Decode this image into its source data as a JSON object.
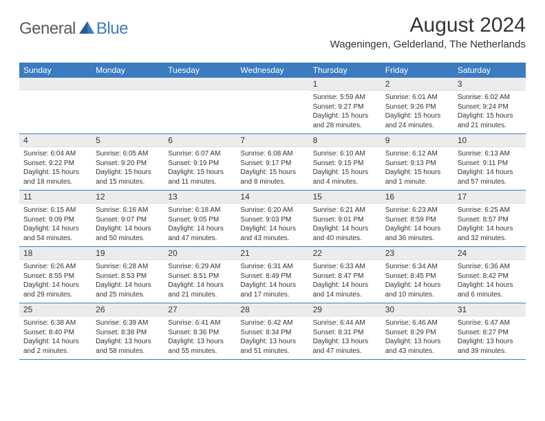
{
  "logo": {
    "text1": "General",
    "text2": "Blue",
    "color_gray": "#5a5a5a",
    "color_blue": "#3b7bbf"
  },
  "title": "August 2024",
  "location": "Wageningen, Gelderland, The Netherlands",
  "colors": {
    "header_bg": "#3b7bbf",
    "header_text": "#ffffff",
    "daynum_bg": "#ececec",
    "border": "#3b7bbf",
    "text": "#333333"
  },
  "day_names": [
    "Sunday",
    "Monday",
    "Tuesday",
    "Wednesday",
    "Thursday",
    "Friday",
    "Saturday"
  ],
  "weeks": [
    [
      {
        "n": "",
        "sunrise": "",
        "sunset": "",
        "daylight1": "",
        "daylight2": ""
      },
      {
        "n": "",
        "sunrise": "",
        "sunset": "",
        "daylight1": "",
        "daylight2": ""
      },
      {
        "n": "",
        "sunrise": "",
        "sunset": "",
        "daylight1": "",
        "daylight2": ""
      },
      {
        "n": "",
        "sunrise": "",
        "sunset": "",
        "daylight1": "",
        "daylight2": ""
      },
      {
        "n": "1",
        "sunrise": "Sunrise: 5:59 AM",
        "sunset": "Sunset: 9:27 PM",
        "daylight1": "Daylight: 15 hours",
        "daylight2": "and 28 minutes."
      },
      {
        "n": "2",
        "sunrise": "Sunrise: 6:01 AM",
        "sunset": "Sunset: 9:26 PM",
        "daylight1": "Daylight: 15 hours",
        "daylight2": "and 24 minutes."
      },
      {
        "n": "3",
        "sunrise": "Sunrise: 6:02 AM",
        "sunset": "Sunset: 9:24 PM",
        "daylight1": "Daylight: 15 hours",
        "daylight2": "and 21 minutes."
      }
    ],
    [
      {
        "n": "4",
        "sunrise": "Sunrise: 6:04 AM",
        "sunset": "Sunset: 9:22 PM",
        "daylight1": "Daylight: 15 hours",
        "daylight2": "and 18 minutes."
      },
      {
        "n": "5",
        "sunrise": "Sunrise: 6:05 AM",
        "sunset": "Sunset: 9:20 PM",
        "daylight1": "Daylight: 15 hours",
        "daylight2": "and 15 minutes."
      },
      {
        "n": "6",
        "sunrise": "Sunrise: 6:07 AM",
        "sunset": "Sunset: 9:19 PM",
        "daylight1": "Daylight: 15 hours",
        "daylight2": "and 11 minutes."
      },
      {
        "n": "7",
        "sunrise": "Sunrise: 6:08 AM",
        "sunset": "Sunset: 9:17 PM",
        "daylight1": "Daylight: 15 hours",
        "daylight2": "and 8 minutes."
      },
      {
        "n": "8",
        "sunrise": "Sunrise: 6:10 AM",
        "sunset": "Sunset: 9:15 PM",
        "daylight1": "Daylight: 15 hours",
        "daylight2": "and 4 minutes."
      },
      {
        "n": "9",
        "sunrise": "Sunrise: 6:12 AM",
        "sunset": "Sunset: 9:13 PM",
        "daylight1": "Daylight: 15 hours",
        "daylight2": "and 1 minute."
      },
      {
        "n": "10",
        "sunrise": "Sunrise: 6:13 AM",
        "sunset": "Sunset: 9:11 PM",
        "daylight1": "Daylight: 14 hours",
        "daylight2": "and 57 minutes."
      }
    ],
    [
      {
        "n": "11",
        "sunrise": "Sunrise: 6:15 AM",
        "sunset": "Sunset: 9:09 PM",
        "daylight1": "Daylight: 14 hours",
        "daylight2": "and 54 minutes."
      },
      {
        "n": "12",
        "sunrise": "Sunrise: 6:16 AM",
        "sunset": "Sunset: 9:07 PM",
        "daylight1": "Daylight: 14 hours",
        "daylight2": "and 50 minutes."
      },
      {
        "n": "13",
        "sunrise": "Sunrise: 6:18 AM",
        "sunset": "Sunset: 9:05 PM",
        "daylight1": "Daylight: 14 hours",
        "daylight2": "and 47 minutes."
      },
      {
        "n": "14",
        "sunrise": "Sunrise: 6:20 AM",
        "sunset": "Sunset: 9:03 PM",
        "daylight1": "Daylight: 14 hours",
        "daylight2": "and 43 minutes."
      },
      {
        "n": "15",
        "sunrise": "Sunrise: 6:21 AM",
        "sunset": "Sunset: 9:01 PM",
        "daylight1": "Daylight: 14 hours",
        "daylight2": "and 40 minutes."
      },
      {
        "n": "16",
        "sunrise": "Sunrise: 6:23 AM",
        "sunset": "Sunset: 8:59 PM",
        "daylight1": "Daylight: 14 hours",
        "daylight2": "and 36 minutes."
      },
      {
        "n": "17",
        "sunrise": "Sunrise: 6:25 AM",
        "sunset": "Sunset: 8:57 PM",
        "daylight1": "Daylight: 14 hours",
        "daylight2": "and 32 minutes."
      }
    ],
    [
      {
        "n": "18",
        "sunrise": "Sunrise: 6:26 AM",
        "sunset": "Sunset: 8:55 PM",
        "daylight1": "Daylight: 14 hours",
        "daylight2": "and 29 minutes."
      },
      {
        "n": "19",
        "sunrise": "Sunrise: 6:28 AM",
        "sunset": "Sunset: 8:53 PM",
        "daylight1": "Daylight: 14 hours",
        "daylight2": "and 25 minutes."
      },
      {
        "n": "20",
        "sunrise": "Sunrise: 6:29 AM",
        "sunset": "Sunset: 8:51 PM",
        "daylight1": "Daylight: 14 hours",
        "daylight2": "and 21 minutes."
      },
      {
        "n": "21",
        "sunrise": "Sunrise: 6:31 AM",
        "sunset": "Sunset: 8:49 PM",
        "daylight1": "Daylight: 14 hours",
        "daylight2": "and 17 minutes."
      },
      {
        "n": "22",
        "sunrise": "Sunrise: 6:33 AM",
        "sunset": "Sunset: 8:47 PM",
        "daylight1": "Daylight: 14 hours",
        "daylight2": "and 14 minutes."
      },
      {
        "n": "23",
        "sunrise": "Sunrise: 6:34 AM",
        "sunset": "Sunset: 8:45 PM",
        "daylight1": "Daylight: 14 hours",
        "daylight2": "and 10 minutes."
      },
      {
        "n": "24",
        "sunrise": "Sunrise: 6:36 AM",
        "sunset": "Sunset: 8:42 PM",
        "daylight1": "Daylight: 14 hours",
        "daylight2": "and 6 minutes."
      }
    ],
    [
      {
        "n": "25",
        "sunrise": "Sunrise: 6:38 AM",
        "sunset": "Sunset: 8:40 PM",
        "daylight1": "Daylight: 14 hours",
        "daylight2": "and 2 minutes."
      },
      {
        "n": "26",
        "sunrise": "Sunrise: 6:39 AM",
        "sunset": "Sunset: 8:38 PM",
        "daylight1": "Daylight: 13 hours",
        "daylight2": "and 58 minutes."
      },
      {
        "n": "27",
        "sunrise": "Sunrise: 6:41 AM",
        "sunset": "Sunset: 8:36 PM",
        "daylight1": "Daylight: 13 hours",
        "daylight2": "and 55 minutes."
      },
      {
        "n": "28",
        "sunrise": "Sunrise: 6:42 AM",
        "sunset": "Sunset: 8:34 PM",
        "daylight1": "Daylight: 13 hours",
        "daylight2": "and 51 minutes."
      },
      {
        "n": "29",
        "sunrise": "Sunrise: 6:44 AM",
        "sunset": "Sunset: 8:31 PM",
        "daylight1": "Daylight: 13 hours",
        "daylight2": "and 47 minutes."
      },
      {
        "n": "30",
        "sunrise": "Sunrise: 6:46 AM",
        "sunset": "Sunset: 8:29 PM",
        "daylight1": "Daylight: 13 hours",
        "daylight2": "and 43 minutes."
      },
      {
        "n": "31",
        "sunrise": "Sunrise: 6:47 AM",
        "sunset": "Sunset: 8:27 PM",
        "daylight1": "Daylight: 13 hours",
        "daylight2": "and 39 minutes."
      }
    ]
  ]
}
